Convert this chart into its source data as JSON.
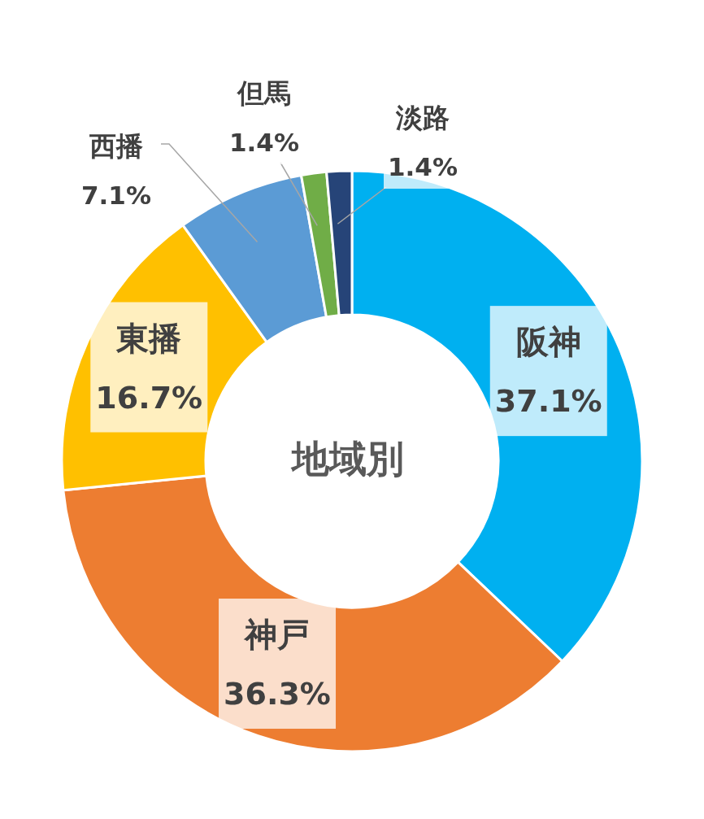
{
  "chart_data": {
    "type": "donut",
    "title": "地域別",
    "categories": [
      "阪神",
      "神戸",
      "東播",
      "西播",
      "但馬",
      "淡路"
    ],
    "values": [
      37.1,
      36.3,
      16.7,
      7.1,
      1.4,
      1.4
    ],
    "value_labels": [
      "37.1%",
      "36.3%",
      "16.7%",
      "7.1%",
      "1.4%",
      "1.4%"
    ],
    "colors": [
      "#00b0f0",
      "#ed7d31",
      "#ffc000",
      "#5b9bd5",
      "#70ad47",
      "#264478"
    ]
  }
}
